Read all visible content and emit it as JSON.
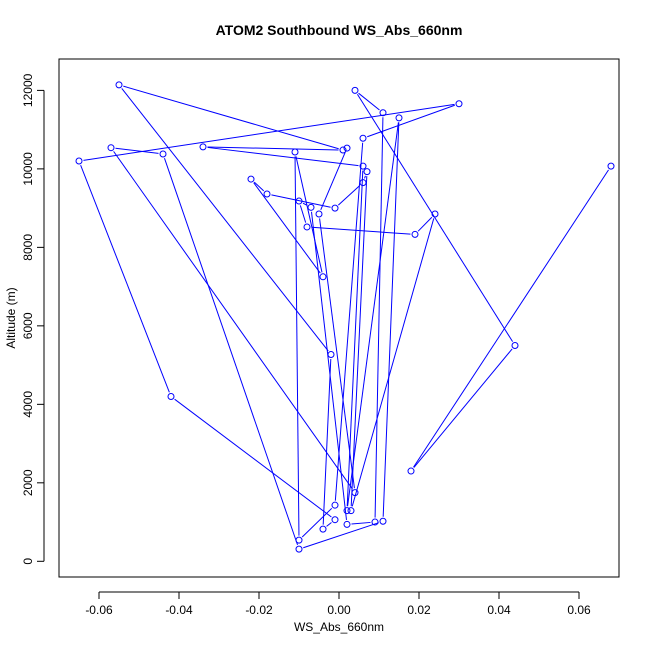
{
  "chart_data": {
    "type": "line",
    "title": "ATOM2 Southbound WS_Abs_660nm",
    "xlabel": "WS_Abs_660nm",
    "ylabel": "Altitude (m)",
    "xlim": [
      -0.07,
      0.07
    ],
    "ylim": [
      -400,
      12800
    ],
    "xticks": [
      -0.06,
      -0.04,
      -0.02,
      0.0,
      0.02,
      0.04,
      0.06
    ],
    "xtick_labels": [
      "-0.06",
      "-0.04",
      "-0.02",
      "0.00",
      "0.02",
      "0.04",
      "0.06"
    ],
    "yticks": [
      0,
      2000,
      4000,
      6000,
      8000,
      10000,
      12000
    ],
    "ytick_labels": [
      "0",
      "2000",
      "4000",
      "6000",
      "8000",
      "10000",
      "12000"
    ],
    "grid": false,
    "marker": "open-circle",
    "color": "#0000ff",
    "series": [
      {
        "points": [
          [
            0.068,
            10070
          ],
          [
            0.018,
            2300
          ],
          [
            0.044,
            5500
          ],
          [
            0.004,
            12000
          ],
          [
            0.011,
            11430
          ],
          [
            0.009,
            1000
          ],
          [
            0.002,
            940
          ],
          [
            -0.007,
            9020
          ],
          [
            -0.01,
            9180
          ],
          [
            -0.008,
            8520
          ],
          [
            0.019,
            8330
          ],
          [
            0.024,
            8850
          ],
          [
            0.003,
            1290
          ],
          [
            0.007,
            9930
          ],
          [
            0.006,
            9650
          ],
          [
            -0.001,
            9000
          ],
          [
            -0.018,
            9360
          ],
          [
            -0.022,
            9740
          ],
          [
            -0.004,
            7250
          ],
          [
            -0.011,
            10430
          ],
          [
            -0.01,
            540
          ],
          [
            -0.001,
            1430
          ],
          [
            0.006,
            10780
          ],
          [
            0.03,
            11660
          ],
          [
            -0.065,
            10200
          ],
          [
            -0.042,
            4200
          ],
          [
            -0.001,
            1060
          ],
          [
            -0.004,
            820
          ],
          [
            -0.002,
            5270
          ],
          [
            -0.055,
            12140
          ],
          [
            0.001,
            10480
          ],
          [
            -0.034,
            10560
          ],
          [
            0.006,
            10070
          ],
          [
            0.002,
            1290
          ],
          [
            0.015,
            11300
          ],
          [
            0.011,
            1020
          ],
          [
            -0.01,
            310
          ],
          [
            -0.044,
            10380
          ],
          [
            -0.057,
            10540
          ],
          [
            0.004,
            1750
          ],
          [
            -0.005,
            8850
          ],
          [
            0.002,
            10530
          ]
        ]
      }
    ]
  }
}
